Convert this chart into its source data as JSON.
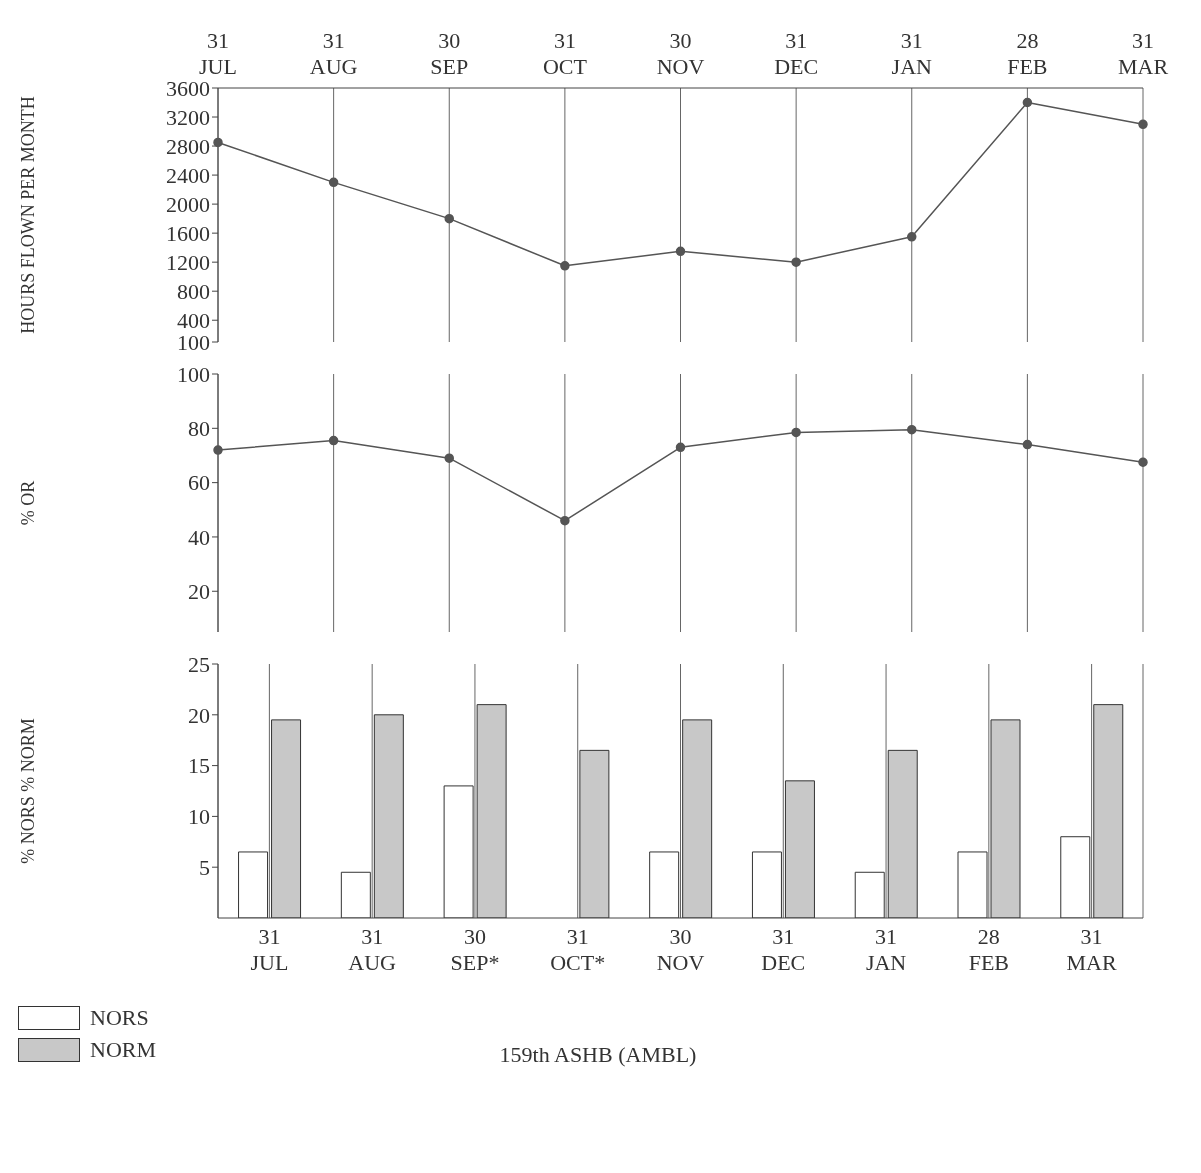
{
  "chart_data": [
    {
      "type": "line",
      "ylabel": "HOURS FLOWN PER MONTH",
      "categories": [
        "31 JUL",
        "31 AUG",
        "30 SEP",
        "31 OCT",
        "30 NOV",
        "31 DEC",
        "31 JAN",
        "28 FEB",
        "31 MAR"
      ],
      "series": [
        {
          "color": "#555555",
          "values": [
            2850,
            2300,
            1800,
            1150,
            1350,
            1200,
            1550,
            3400,
            3100
          ]
        }
      ],
      "ylim": [
        100,
        3600
      ],
      "yticks": [
        100,
        400,
        800,
        1200,
        1600,
        2000,
        2400,
        2800,
        3200,
        3600
      ],
      "grid": "x",
      "marker": "circle",
      "line_style": "solid"
    },
    {
      "type": "line",
      "ylabel": "% OR",
      "categories": [
        null,
        null,
        null,
        null,
        null,
        null,
        null,
        null,
        null
      ],
      "series": [
        {
          "color": "#555555",
          "values": [
            72,
            75.5,
            69,
            46,
            73,
            78.5,
            79.5,
            74,
            67.5
          ]
        }
      ],
      "ylim": [
        5,
        100
      ],
      "yticks": [
        20,
        40,
        60,
        80,
        100
      ],
      "grid": "x",
      "marker": "circle",
      "line_style": "solid",
      "tick_labels": "y"
    },
    {
      "type": "bar",
      "ylabel": "% NORS % NORM",
      "categories": [
        "31 JUL",
        "31 AUG",
        "30 SEP*",
        "31 OCT*",
        "30 NOV",
        "31 DEC",
        "31 JAN",
        "28 FEB",
        "31 MAR"
      ],
      "series": [
        {
          "name": "NORS",
          "color": "#ffffff",
          "values": [
            6.5,
            4.5,
            13,
            0,
            6.5,
            6.5,
            4.5,
            6.5,
            8
          ]
        },
        {
          "name": "NORM",
          "color": "#c8c8c8",
          "values": [
            19.5,
            20,
            21,
            16.5,
            19.5,
            13.5,
            16.5,
            19.5,
            21
          ]
        }
      ],
      "ylim": [
        0,
        25
      ],
      "yticks": [
        5,
        10,
        15,
        20,
        25
      ],
      "grid": "x",
      "legend": "bottom left",
      "annotations": [
        "159th ASHB (AMBL)"
      ]
    }
  ]
}
